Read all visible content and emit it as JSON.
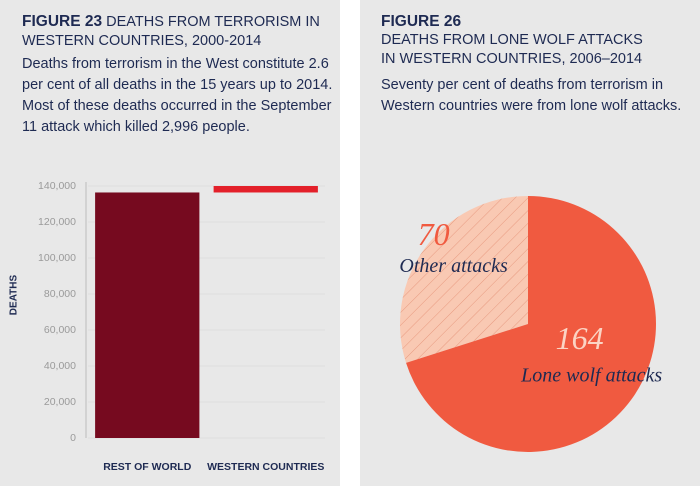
{
  "chart_data": [
    {
      "type": "waterfall",
      "figure_label": "FIGURE 23",
      "title": "DEATHS FROM TERRORISM IN WESTERN COUNTRIES, 2000-2014",
      "subtitle": "Deaths from terrorism in the West constitute 2.6 per cent of all deaths in the 15 years up to 2014. Most of these deaths occurred in the September 11 attack which killed 2,996 people.",
      "ylabel": "DEATHS",
      "categories": [
        "REST OF WORLD",
        "WESTERN COUNTRIES"
      ],
      "values": [
        136400,
        3600
      ],
      "colors": [
        "#760a1f",
        "#e3202a"
      ],
      "ylim": [
        0,
        140000
      ],
      "yticks": [
        0,
        {
          "value": 20000,
          "label": "20,000"
        },
        {
          "value": 40000,
          "label": "40,000"
        },
        {
          "value": 60000,
          "label": "60,000"
        },
        {
          "value": 80000,
          "label": "80,000"
        },
        {
          "value": 100000,
          "label": "100,000"
        },
        {
          "value": 120000,
          "label": "120,000"
        },
        {
          "value": 140000,
          "label": "140,000"
        }
      ],
      "grid": true
    },
    {
      "type": "pie",
      "figure_label": "FIGURE 26",
      "title": "DEATHS FROM LONE WOLF ATTACKS IN WESTERN COUNTRIES, 2006–2014",
      "subtitle": "Seventy per cent of deaths from terrorism in Western countries were from lone wolf attacks.",
      "categories": [
        "Other attacks",
        "Lone wolf attacks"
      ],
      "values": [
        70,
        164
      ],
      "colors": [
        "#f9c9b3",
        "#f05a40"
      ]
    }
  ]
}
